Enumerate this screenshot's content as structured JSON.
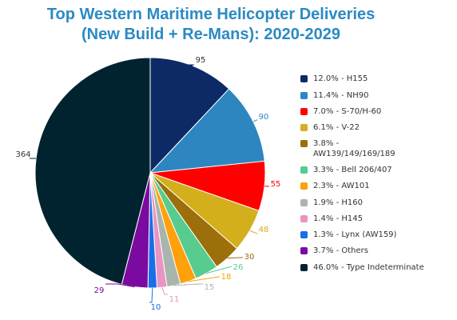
{
  "title_lines": [
    "Top Western Maritime Helicopter Deliveries",
    "(New Build + Re-Mans): 2020-2029"
  ],
  "chart_data": {
    "type": "pie",
    "title": "Top Western Maritime Helicopter Deliveries (New Build + Re-Mans): 2020-2029",
    "slices": [
      {
        "label": "H155",
        "legend": "12.0% - H155",
        "value": 95,
        "percent": 12.0,
        "color": "#0d2a66"
      },
      {
        "label": "NH90",
        "legend": "11.4% - NH90",
        "value": 90,
        "percent": 11.4,
        "color": "#2e86c1"
      },
      {
        "label": "S-70/H-60",
        "legend": "7.0% - S-70/H-60",
        "value": 55,
        "percent": 7.0,
        "color": "#ff0000"
      },
      {
        "label": "V-22",
        "legend": "6.1% - V-22",
        "value": 48,
        "percent": 6.1,
        "color": "#d4af1c"
      },
      {
        "label": "AW139/149/169/189",
        "legend": "3.8% - AW139/149/169/189",
        "value": 30,
        "percent": 3.8,
        "color": "#9c6f0a"
      },
      {
        "label": "Bell 206/407",
        "legend": "3.3% - Bell 206/407",
        "value": 26,
        "percent": 3.3,
        "color": "#57cc8e"
      },
      {
        "label": "AW101",
        "legend": "2.3% - AW101",
        "value": 18,
        "percent": 2.3,
        "color": "#ffa10a"
      },
      {
        "label": "H160",
        "legend": "1.9% - H160",
        "value": 15,
        "percent": 1.9,
        "color": "#a9b4ad"
      },
      {
        "label": "H145",
        "legend": "1.4% - H145",
        "value": 11,
        "percent": 1.4,
        "color": "#e895c4"
      },
      {
        "label": "Lynx (AW159)",
        "legend": "1.3% - Lynx (AW159)",
        "value": 10,
        "percent": 1.3,
        "color": "#1a6ee8"
      },
      {
        "label": "Others",
        "legend": "3.7% - Others",
        "value": 29,
        "percent": 3.7,
        "color": "#7a0aa0"
      },
      {
        "label": "Type Indeterminate",
        "legend": "46.0% - Type Indeterminate",
        "value": 364,
        "percent": 46.0,
        "color": "#012330"
      }
    ],
    "legend_position": "right"
  }
}
